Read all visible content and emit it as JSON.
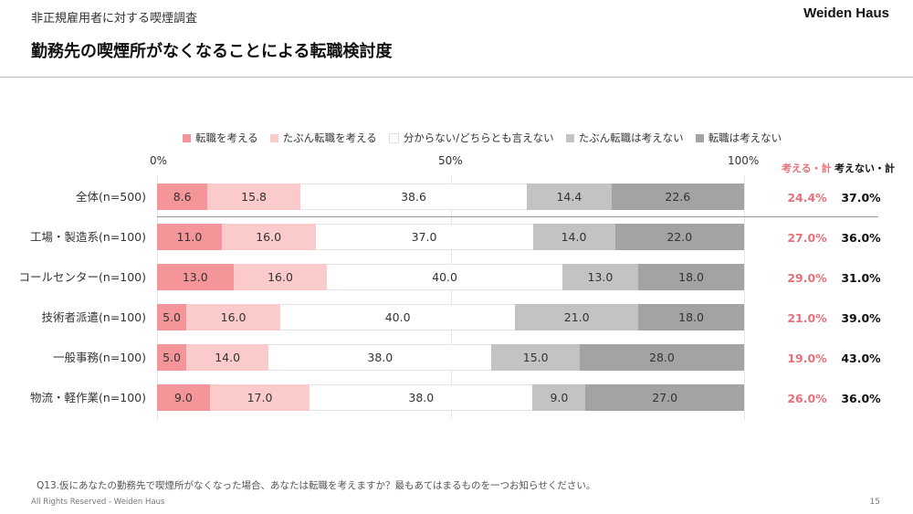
{
  "header": {
    "subtitle": "非正規雇用者に対する喫煙調査",
    "brand": "Weiden Haus",
    "title": "勤務先の喫煙所がなくなることによる転職検討度"
  },
  "summary_headers": {
    "consider": "考える・計",
    "not_consider": "考えない・計"
  },
  "colors": {
    "seg": [
      "#f4959a",
      "#fbcaca",
      "#ffffff",
      "#c3c3c3",
      "#a3a3a3"
    ],
    "consider_text": "#e8707a",
    "not_consider_text": "#111111"
  },
  "question": "Q13.仮にあなたの勤務先で喫煙所がなくなった場合、あなたは転職を考えますか？最もあてはまるものを一つお知らせください。",
  "footer": {
    "copyright": "All Rights Reserved - Weiden Haus",
    "page": "15"
  },
  "chart_data": {
    "type": "bar",
    "orientation": "horizontal-stacked-100",
    "xlim": [
      0,
      100
    ],
    "axis_ticks": [
      "0%",
      "50%",
      "100%"
    ],
    "legend": [
      "転職を考える",
      "たぶん転職を考える",
      "分からない/どちらとも言えない",
      "たぶん転職は考えない",
      "転職は考えない"
    ],
    "categories": [
      "全体(n=500)",
      "工場・製造系(n=100)",
      "コールセンター(n=100)",
      "技術者派遣(n=100)",
      "一般事務(n=100)",
      "物流・軽作業(n=100)"
    ],
    "series": [
      {
        "name": "転職を考える",
        "values": [
          8.6,
          11.0,
          13.0,
          5.0,
          5.0,
          9.0
        ]
      },
      {
        "name": "たぶん転職を考える",
        "values": [
          15.8,
          16.0,
          16.0,
          16.0,
          14.0,
          17.0
        ]
      },
      {
        "name": "分からない/どちらとも言えない",
        "values": [
          38.6,
          37.0,
          40.0,
          40.0,
          38.0,
          38.0
        ]
      },
      {
        "name": "たぶん転職は考えない",
        "values": [
          14.4,
          14.0,
          13.0,
          21.0,
          15.0,
          9.0
        ]
      },
      {
        "name": "転職は考えない",
        "values": [
          22.6,
          22.0,
          18.0,
          18.0,
          28.0,
          27.0
        ]
      }
    ],
    "consider_total": [
      "24.4%",
      "27.0%",
      "29.0%",
      "21.0%",
      "19.0%",
      "26.0%"
    ],
    "not_consider_total": [
      "37.0%",
      "36.0%",
      "31.0%",
      "39.0%",
      "43.0%",
      "36.0%"
    ]
  }
}
